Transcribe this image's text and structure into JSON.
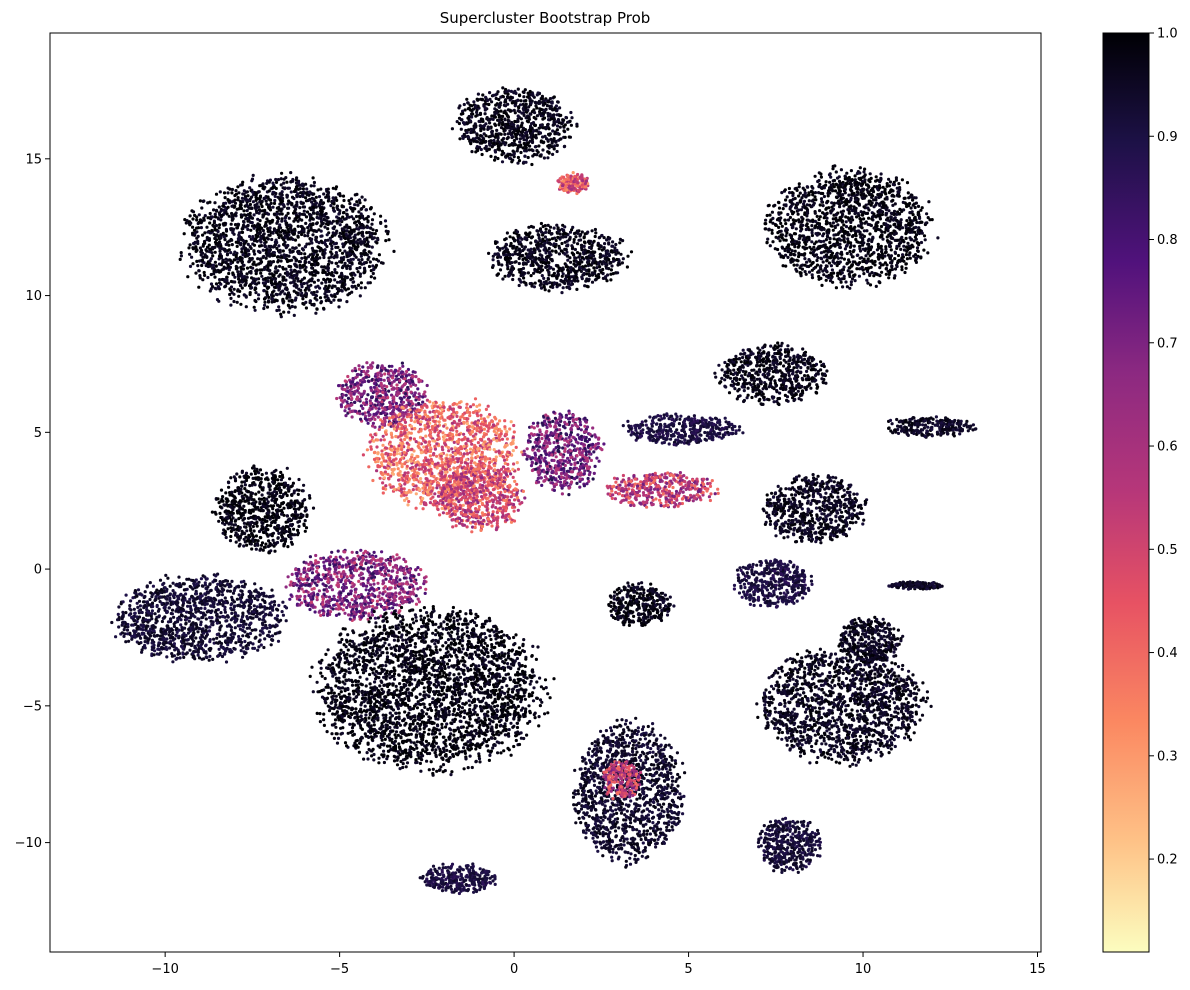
{
  "chart_data": {
    "type": "scatter",
    "title": "Supercluster Bootstrap Prob",
    "xlabel": "",
    "ylabel": "",
    "xlim": [
      -13.3,
      15.1
    ],
    "ylim": [
      -14.0,
      19.6
    ],
    "x_ticks": [
      -10,
      -5,
      0,
      5,
      10,
      15
    ],
    "y_ticks": [
      -10,
      -5,
      0,
      5,
      10,
      15
    ],
    "grid": false,
    "legend": "none",
    "colorbar": {
      "cmap": "magma_r",
      "range": [
        0.11,
        1.0
      ],
      "ticks": [
        0.2,
        0.3,
        0.4,
        0.5,
        0.6,
        0.7,
        0.8,
        0.9,
        1.0
      ],
      "tick_labels": [
        "0.2",
        "0.3",
        "0.4",
        "0.5",
        "0.6",
        "0.7",
        "0.8",
        "0.9",
        "1.0"
      ]
    },
    "clusters": [
      {
        "cx": 0.0,
        "cy": 16.2,
        "rx": 1.9,
        "ry": 1.5,
        "prob": 0.97
      },
      {
        "cx": 1.7,
        "cy": 14.1,
        "rx": 0.5,
        "ry": 0.4,
        "prob": 0.45
      },
      {
        "cx": 9.6,
        "cy": 12.5,
        "rx": 2.6,
        "ry": 2.3,
        "prob": 0.98
      },
      {
        "cx": 1.3,
        "cy": 11.4,
        "rx": 2.2,
        "ry": 1.3,
        "prob": 0.97
      },
      {
        "cx": -6.6,
        "cy": 11.9,
        "rx": 3.2,
        "ry": 2.7,
        "prob": 0.97
      },
      {
        "cx": -3.8,
        "cy": 6.4,
        "rx": 1.4,
        "ry": 1.3,
        "prob": 0.7
      },
      {
        "cx": -2.0,
        "cy": 4.2,
        "rx": 2.4,
        "ry": 2.2,
        "prob": 0.42
      },
      {
        "cx": -1.0,
        "cy": 2.6,
        "rx": 1.4,
        "ry": 1.3,
        "prob": 0.5
      },
      {
        "cx": 1.4,
        "cy": 4.3,
        "rx": 1.2,
        "ry": 1.6,
        "prob": 0.72
      },
      {
        "cx": 4.2,
        "cy": 2.9,
        "rx": 1.8,
        "ry": 0.7,
        "prob": 0.55
      },
      {
        "cx": 7.4,
        "cy": 7.1,
        "rx": 1.7,
        "ry": 1.2,
        "prob": 0.97
      },
      {
        "cx": 4.8,
        "cy": 5.1,
        "rx": 1.9,
        "ry": 0.6,
        "prob": 0.9
      },
      {
        "cx": 11.9,
        "cy": 5.2,
        "rx": 1.4,
        "ry": 0.4,
        "prob": 0.95
      },
      {
        "cx": 8.6,
        "cy": 2.2,
        "rx": 1.6,
        "ry": 1.4,
        "prob": 0.96
      },
      {
        "cx": 7.4,
        "cy": -0.5,
        "rx": 1.2,
        "ry": 1.0,
        "prob": 0.9
      },
      {
        "cx": 3.6,
        "cy": -1.3,
        "rx": 1.0,
        "ry": 0.9,
        "prob": 0.97
      },
      {
        "cx": -9.0,
        "cy": -1.8,
        "rx": 2.7,
        "ry": 1.7,
        "prob": 0.93
      },
      {
        "cx": -7.2,
        "cy": 2.2,
        "rx": 1.5,
        "ry": 1.7,
        "prob": 0.98
      },
      {
        "cx": -4.5,
        "cy": -0.6,
        "rx": 2.2,
        "ry": 1.4,
        "prob": 0.68
      },
      {
        "cx": -2.4,
        "cy": -4.4,
        "rx": 3.6,
        "ry": 3.2,
        "prob": 0.98
      },
      {
        "cx": 3.3,
        "cy": -8.2,
        "rx": 1.7,
        "ry": 2.8,
        "prob": 0.94
      },
      {
        "cx": 3.1,
        "cy": -7.7,
        "rx": 0.6,
        "ry": 0.8,
        "prob": 0.55
      },
      {
        "cx": 9.4,
        "cy": -5.0,
        "rx": 2.6,
        "ry": 2.3,
        "prob": 0.96
      },
      {
        "cx": 10.2,
        "cy": -2.6,
        "rx": 1.0,
        "ry": 0.9,
        "prob": 0.96
      },
      {
        "cx": 7.9,
        "cy": -10.1,
        "rx": 1.0,
        "ry": 1.1,
        "prob": 0.92
      },
      {
        "cx": -1.6,
        "cy": -11.3,
        "rx": 1.2,
        "ry": 0.6,
        "prob": 0.9
      },
      {
        "cx": 11.5,
        "cy": -0.6,
        "rx": 0.9,
        "ry": 0.15,
        "prob": 0.95
      }
    ]
  }
}
